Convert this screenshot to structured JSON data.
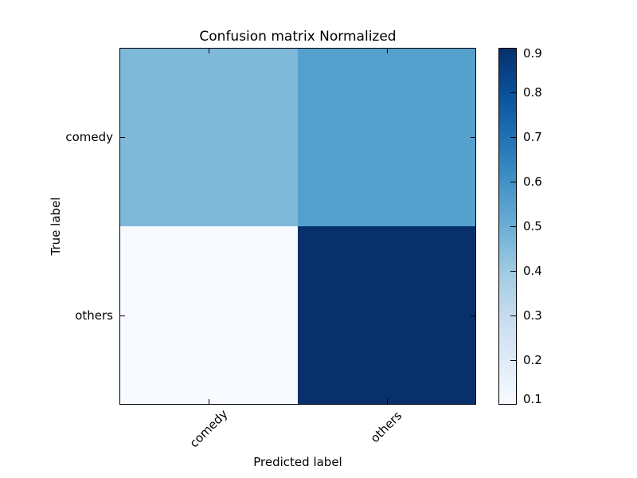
{
  "chart_data": {
    "type": "heatmap",
    "title": "Confusion matrix Normalized",
    "xlabel": "Predicted label",
    "ylabel": "True label",
    "x_tick_labels": [
      "comedy",
      "others"
    ],
    "y_tick_labels": [
      "comedy",
      "others"
    ],
    "rows": [
      [
        0.45,
        0.55
      ],
      [
        0.1,
        0.9
      ]
    ],
    "cell_colors": [
      [
        "#7fb9da",
        "#56a0ce"
      ],
      [
        "#f7fbff",
        "#08306b"
      ]
    ],
    "colormap": "Blues",
    "grid": false,
    "legend": "colorbar-right",
    "colorbar": {
      "min": 0.1,
      "max": 0.9,
      "ticks": [
        0.1,
        0.2,
        0.3,
        0.4,
        0.5,
        0.6,
        0.7,
        0.8,
        0.9
      ],
      "tick_labels": [
        "0.1",
        "0.2",
        "0.3",
        "0.4",
        "0.5",
        "0.6",
        "0.7",
        "0.8",
        "0.9"
      ],
      "gradient_stops": [
        "#f7fbff",
        "#deebf7",
        "#c6dbef",
        "#9ecae1",
        "#6baed6",
        "#4292c6",
        "#2171b5",
        "#08519c",
        "#08306b"
      ]
    }
  }
}
